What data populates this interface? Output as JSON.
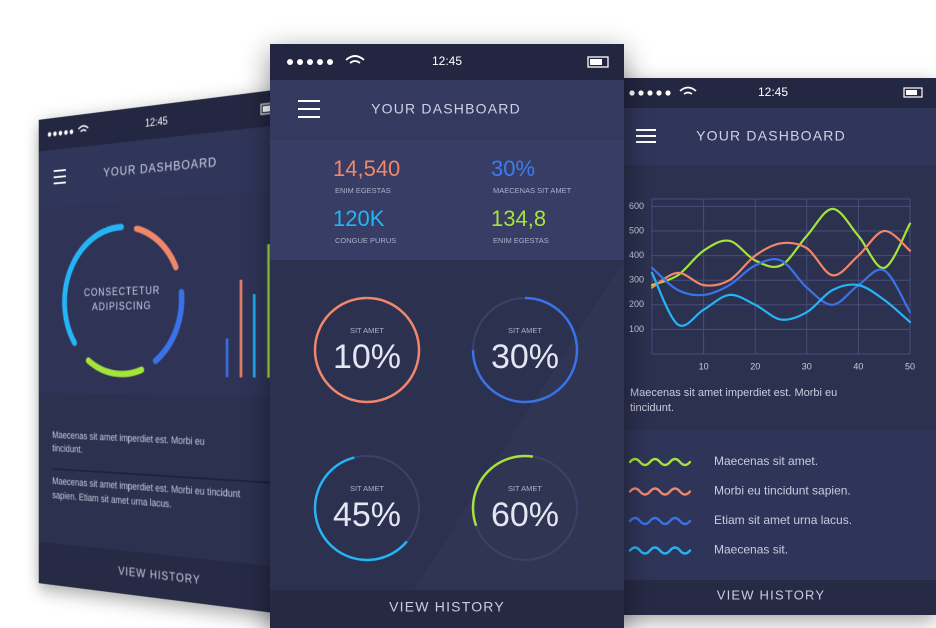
{
  "screens": {
    "left": {
      "status_time": "12:45",
      "title": "YOUR DASHBOARD",
      "ring_label": [
        "CONSECTETUR",
        "ADIPISCING"
      ],
      "paragraphs": [
        [
          "Maecenas sit amet imperdiet est. Morbi eu",
          "tincidunt."
        ],
        [
          "Maecenas sit amet imperdiet est. Morbi eu tincidunt",
          "sapien. Etiam sit amet urna lacus."
        ]
      ],
      "footer": "VIEW HISTORY"
    },
    "center": {
      "status_time": "12:45",
      "title": "YOUR DASHBOARD",
      "stats": [
        {
          "value": "14,540",
          "label": "ENIM EGESTAS"
        },
        {
          "value": "30%",
          "label": "MAECENAS SIT AMET"
        },
        {
          "value": "120K",
          "label": "CONGUE PURUS"
        },
        {
          "value": "134,8",
          "label": "ENIM EGESTAS"
        }
      ],
      "gauges": [
        {
          "caption": "SIT AMET",
          "value": "10%"
        },
        {
          "caption": "SIT AMET",
          "value": "30%"
        },
        {
          "caption": "SIT AMET",
          "value": "45%"
        },
        {
          "caption": "SIT AMET",
          "value": "60%"
        }
      ],
      "footer": "VIEW HISTORY"
    },
    "right": {
      "status_time": "12:45",
      "title": "YOUR DASHBOARD",
      "caption": [
        "Maecenas sit amet imperdiet est. Morbi eu",
        "tincidunt."
      ],
      "footer": "VIEW HISTORY"
    }
  },
  "chart_data": {
    "type": "line",
    "x": [
      0,
      5,
      10,
      15,
      20,
      25,
      30,
      35,
      40,
      45,
      50
    ],
    "series": [
      {
        "name": "Maecenas sit amet.",
        "color": "#a5e43a",
        "values": [
          280,
          320,
          420,
          460,
          380,
          360,
          480,
          590,
          480,
          350,
          530
        ]
      },
      {
        "name": "Morbi eu tincidunt sapien.",
        "color": "#f0876a",
        "values": [
          270,
          330,
          280,
          300,
          400,
          450,
          430,
          320,
          400,
          500,
          420
        ]
      },
      {
        "name": "Etiam sit amet urna lacus.",
        "color": "#3a72e8",
        "values": [
          350,
          260,
          240,
          280,
          360,
          380,
          270,
          200,
          280,
          340,
          170
        ]
      },
      {
        "name": "Maecenas sit.",
        "color": "#25b4f5",
        "values": [
          330,
          120,
          180,
          240,
          200,
          140,
          170,
          260,
          280,
          220,
          130
        ]
      }
    ],
    "xlim": [
      0,
      50
    ],
    "xticks": [
      10,
      20,
      30,
      40,
      50
    ],
    "ylim": [
      0,
      630
    ],
    "yticks": [
      100,
      200,
      300,
      400,
      500,
      600
    ],
    "grid": true
  }
}
